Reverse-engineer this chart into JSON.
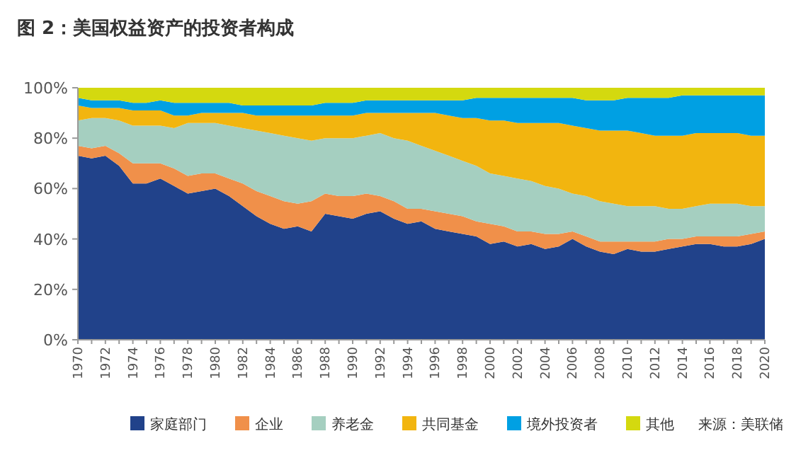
{
  "chart_data": {
    "type": "area",
    "title": "图 2：美国权益资产的投资者构成",
    "stacked": true,
    "legend": "bottom",
    "grid": false,
    "annotations": [
      "来源：美联储"
    ],
    "categories": [
      "1970",
      null,
      "1972",
      null,
      "1974",
      null,
      "1976",
      null,
      "1978",
      null,
      "1980",
      null,
      "1982",
      null,
      "1984",
      null,
      "1986",
      null,
      "1988",
      null,
      "1990",
      null,
      "1992",
      null,
      "1994",
      null,
      "1996",
      null,
      "1998",
      null,
      "2000",
      null,
      "2002",
      null,
      "2004",
      null,
      "2006",
      null,
      "2008",
      null,
      "2010",
      null,
      "2012",
      null,
      "2014",
      null,
      "2016",
      null,
      "2018",
      null,
      "2020"
    ],
    "ylim": [
      0,
      100
    ],
    "yticks": [
      {
        "value": 0,
        "label": "0%"
      },
      {
        "value": 20,
        "label": "20%"
      },
      {
        "value": 40,
        "label": "40%"
      },
      {
        "value": 60,
        "label": "60%"
      },
      {
        "value": 80,
        "label": "80%"
      },
      {
        "value": 100,
        "label": "100%"
      }
    ],
    "series": [
      {
        "name": "家庭部门",
        "color": "#21428a",
        "values": [
          73,
          72,
          73,
          69,
          62,
          62,
          64,
          61,
          58,
          59,
          60,
          57,
          53,
          49,
          46,
          44,
          45,
          43,
          50,
          49,
          48,
          50,
          51,
          48,
          46,
          47,
          44,
          43,
          42,
          41,
          38,
          39,
          37,
          38,
          36,
          37,
          40,
          37,
          35,
          34,
          36,
          35,
          35,
          36,
          37,
          38,
          38,
          37,
          37,
          38,
          40
        ]
      },
      {
        "name": "企业",
        "color": "#f0904a",
        "values": [
          4,
          4,
          4,
          5,
          8,
          8,
          6,
          7,
          7,
          7,
          6,
          7,
          9,
          10,
          11,
          11,
          9,
          12,
          8,
          8,
          9,
          8,
          6,
          7,
          6,
          5,
          7,
          7,
          7,
          6,
          8,
          6,
          6,
          5,
          6,
          5,
          3,
          4,
          4,
          5,
          3,
          4,
          4,
          4,
          3,
          3,
          3,
          4,
          4,
          4,
          3
        ]
      },
      {
        "name": "养老金",
        "color": "#a5cfc0",
        "values": [
          10,
          12,
          11,
          13,
          15,
          15,
          15,
          16,
          21,
          20,
          20,
          21,
          22,
          24,
          25,
          26,
          26,
          24,
          22,
          23,
          23,
          23,
          25,
          25,
          27,
          25,
          24,
          23,
          22,
          22,
          20,
          20,
          21,
          20,
          19,
          18,
          15,
          16,
          16,
          15,
          14,
          14,
          14,
          12,
          12,
          12,
          13,
          13,
          13,
          11,
          10
        ]
      },
      {
        "name": "共同基金",
        "color": "#f2b50f",
        "values": [
          6,
          4,
          4,
          5,
          6,
          6,
          6,
          5,
          3,
          4,
          4,
          5,
          6,
          6,
          7,
          8,
          9,
          10,
          9,
          9,
          9,
          9,
          8,
          10,
          11,
          13,
          15,
          16,
          17,
          19,
          21,
          22,
          22,
          23,
          25,
          26,
          27,
          27,
          28,
          29,
          30,
          29,
          28,
          29,
          29,
          29,
          28,
          28,
          28,
          28,
          28
        ]
      },
      {
        "name": "境外投资者",
        "color": "#00a0e3",
        "values": [
          3,
          3,
          3,
          3,
          3,
          3,
          4,
          5,
          5,
          4,
          4,
          4,
          3,
          4,
          4,
          4,
          4,
          4,
          5,
          5,
          5,
          5,
          5,
          5,
          5,
          5,
          5,
          6,
          7,
          8,
          9,
          9,
          10,
          10,
          10,
          10,
          11,
          11,
          12,
          12,
          13,
          14,
          15,
          15,
          16,
          15,
          15,
          15,
          15,
          16,
          16
        ]
      },
      {
        "name": "其他",
        "color": "#d4d90f",
        "values": [
          4,
          5,
          5,
          5,
          6,
          6,
          5,
          6,
          6,
          6,
          6,
          6,
          7,
          7,
          7,
          7,
          7,
          7,
          6,
          6,
          6,
          5,
          5,
          5,
          5,
          5,
          5,
          5,
          5,
          4,
          4,
          4,
          4,
          4,
          4,
          4,
          4,
          5,
          5,
          5,
          4,
          4,
          4,
          4,
          3,
          3,
          3,
          3,
          3,
          3,
          3
        ]
      }
    ]
  }
}
